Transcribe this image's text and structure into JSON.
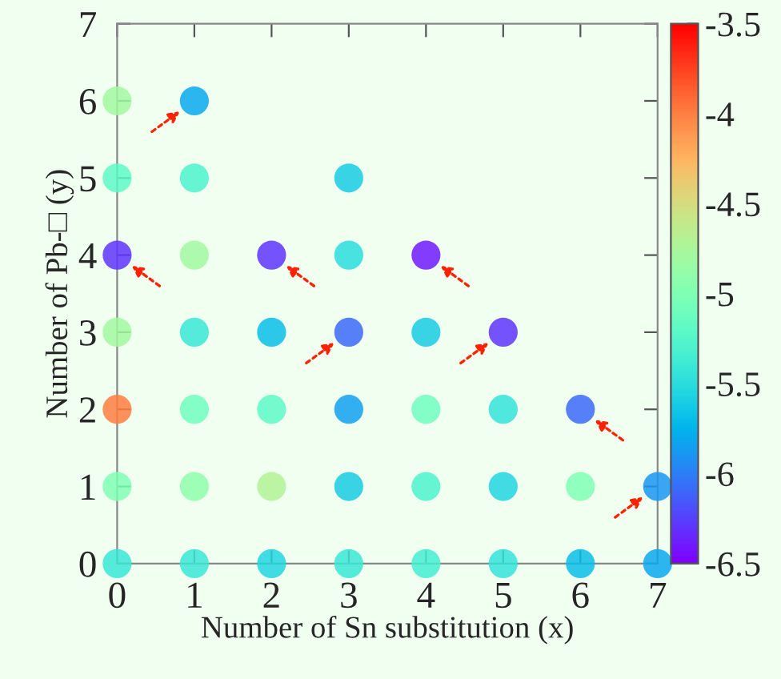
{
  "chart_data": {
    "type": "scatter",
    "xlabel": "Number of Sn substitution (x)",
    "ylabel": "Number of Pb-□ (y)",
    "x": [
      0,
      0,
      0,
      0,
      0,
      0,
      0,
      1,
      1,
      1,
      1,
      1,
      1,
      1,
      2,
      2,
      2,
      2,
      2,
      3,
      3,
      3,
      3,
      3,
      3,
      4,
      4,
      4,
      4,
      4,
      5,
      5,
      5,
      5,
      6,
      6,
      6,
      7,
      7
    ],
    "values": [
      0,
      1,
      2,
      3,
      4,
      5,
      6,
      0,
      1,
      2,
      3,
      4,
      5,
      6,
      0,
      1,
      2,
      3,
      4,
      0,
      1,
      2,
      3,
      4,
      5,
      0,
      1,
      2,
      3,
      4,
      0,
      1,
      2,
      3,
      0,
      1,
      2,
      0,
      1
    ],
    "cvalues": [
      -5.4,
      -5.0,
      -4.0,
      -4.8,
      -6.3,
      -5.2,
      -4.8,
      -5.4,
      -4.9,
      -5.1,
      -5.4,
      -4.8,
      -5.3,
      -5.8,
      -5.55,
      -4.7,
      -5.2,
      -5.7,
      -6.3,
      -5.4,
      -5.6,
      -5.85,
      -6.1,
      -5.5,
      -5.6,
      -5.35,
      -5.3,
      -5.1,
      -5.6,
      -6.4,
      -5.45,
      -5.55,
      -5.45,
      -6.3,
      -5.7,
      -5.0,
      -6.1,
      -5.8,
      -5.9
    ],
    "xlim": [
      0,
      7
    ],
    "ylim": [
      0,
      7
    ],
    "xticks": [
      0,
      1,
      2,
      3,
      4,
      5,
      6,
      7
    ],
    "yticks": [
      0,
      1,
      2,
      3,
      4,
      5,
      6,
      7
    ],
    "clim": [
      -6.5,
      -3.5
    ],
    "cticks": [
      {
        "value": -6.5,
        "label": "-6.5"
      },
      {
        "value": -6,
        "label": "-6"
      },
      {
        "value": -5.5,
        "label": "-5.5"
      },
      {
        "value": -5,
        "label": "-5"
      },
      {
        "value": -4.5,
        "label": "-4.5"
      },
      {
        "value": -4,
        "label": "-4"
      },
      {
        "value": -3.5,
        "label": "-3.5"
      }
    ],
    "grid": false,
    "legend": false,
    "marker": "circle"
  }
}
